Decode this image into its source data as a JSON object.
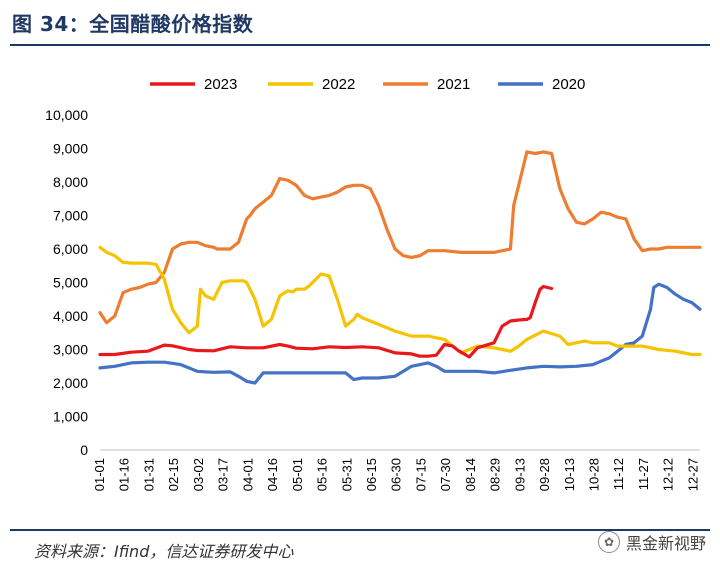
{
  "header": {
    "title": "图 34：全国醋酸价格指数"
  },
  "footer": {
    "source": "资料来源：Ifind，信达证券研发中心",
    "watermark": "黑金新视野"
  },
  "chart_data": {
    "type": "line",
    "title": "",
    "xlabel": "",
    "ylabel": "",
    "ylim": [
      0,
      10000
    ],
    "y_ticks": [
      "0",
      "1,000",
      "2,000",
      "3,000",
      "4,000",
      "5,000",
      "6,000",
      "7,000",
      "8,000",
      "9,000",
      "10,000"
    ],
    "x_ticks": [
      "01-01",
      "01-16",
      "01-31",
      "02-15",
      "03-02",
      "03-17",
      "04-01",
      "04-16",
      "05-01",
      "05-16",
      "05-31",
      "06-15",
      "06-30",
      "07-15",
      "07-30",
      "08-14",
      "08-29",
      "09-13",
      "09-28",
      "10-13",
      "10-28",
      "11-12",
      "11-27",
      "12-12",
      "12-27"
    ],
    "legend_position": "top",
    "grid": false,
    "x_unit": "day-of-year",
    "series": [
      {
        "name": "2023",
        "color": "#e8191c",
        "x": [
          1,
          10,
          20,
          30,
          40,
          45,
          55,
          60,
          70,
          80,
          90,
          100,
          110,
          115,
          120,
          130,
          140,
          150,
          160,
          170,
          180,
          190,
          195,
          200,
          205,
          210,
          215,
          218,
          225,
          230,
          240,
          245,
          250,
          255,
          260,
          262,
          265,
          268,
          270,
          275
        ],
        "values": [
          2850,
          2850,
          2920,
          2950,
          3130,
          3110,
          3000,
          2970,
          2960,
          3080,
          3050,
          3050,
          3150,
          3100,
          3040,
          3020,
          3080,
          3060,
          3080,
          3050,
          2900,
          2870,
          2800,
          2800,
          2830,
          3150,
          3100,
          2980,
          2780,
          3050,
          3200,
          3700,
          3850,
          3880,
          3900,
          3950,
          4400,
          4800,
          4880,
          4820
        ]
      },
      {
        "name": "2022",
        "color": "#f5c400",
        "x": [
          1,
          5,
          10,
          15,
          20,
          30,
          35,
          40,
          45,
          50,
          55,
          60,
          62,
          65,
          70,
          72,
          75,
          80,
          85,
          88,
          90,
          95,
          100,
          105,
          110,
          115,
          118,
          120,
          125,
          128,
          130,
          135,
          140,
          145,
          150,
          155,
          157,
          160,
          165,
          170,
          175,
          180,
          190,
          200,
          210,
          220,
          230,
          240,
          245,
          250,
          255,
          260,
          270,
          280,
          285,
          290,
          295,
          300,
          310,
          315,
          320,
          330,
          340,
          350,
          360,
          365
        ],
        "values": [
          6050,
          5900,
          5800,
          5600,
          5580,
          5580,
          5540,
          5100,
          4200,
          3800,
          3500,
          3700,
          4800,
          4600,
          4500,
          4700,
          5000,
          5050,
          5050,
          5050,
          5000,
          4500,
          3700,
          3900,
          4600,
          4750,
          4720,
          4800,
          4800,
          4900,
          5000,
          5250,
          5200,
          4500,
          3700,
          3900,
          4050,
          3950,
          3850,
          3750,
          3650,
          3550,
          3400,
          3400,
          3300,
          2900,
          3100,
          3050,
          3000,
          2950,
          3100,
          3300,
          3550,
          3400,
          3150,
          3200,
          3250,
          3200,
          3200,
          3100,
          3100,
          3100,
          3000,
          2950,
          2850,
          2850
        ]
      },
      {
        "name": "2021",
        "color": "#ed7d31",
        "x": [
          1,
          5,
          10,
          15,
          20,
          25,
          30,
          35,
          40,
          45,
          50,
          55,
          60,
          65,
          70,
          72,
          75,
          80,
          85,
          90,
          92,
          95,
          100,
          105,
          110,
          115,
          120,
          125,
          130,
          135,
          140,
          145,
          150,
          155,
          160,
          165,
          170,
          175,
          180,
          185,
          190,
          195,
          200,
          210,
          220,
          230,
          240,
          245,
          250,
          252,
          255,
          260,
          265,
          270,
          275,
          280,
          285,
          290,
          295,
          300,
          305,
          310,
          315,
          320,
          325,
          330,
          335,
          340,
          345,
          350,
          355,
          360,
          365
        ],
        "values": [
          4100,
          3800,
          4000,
          4700,
          4800,
          4850,
          4950,
          5000,
          5300,
          6000,
          6150,
          6200,
          6200,
          6100,
          6050,
          6000,
          6000,
          6000,
          6200,
          6900,
          7000,
          7200,
          7400,
          7600,
          8100,
          8050,
          7900,
          7600,
          7500,
          7550,
          7600,
          7700,
          7850,
          7900,
          7900,
          7800,
          7300,
          6600,
          6000,
          5800,
          5750,
          5800,
          5950,
          5950,
          5900,
          5900,
          5900,
          5950,
          6000,
          7300,
          7900,
          8900,
          8850,
          8900,
          8850,
          7800,
          7200,
          6800,
          6750,
          6900,
          7100,
          7050,
          6950,
          6900,
          6300,
          5950,
          6000,
          6000,
          6050,
          6050,
          6050,
          6050,
          6050
        ]
      },
      {
        "name": "2020",
        "color": "#4472c4",
        "x": [
          1,
          10,
          20,
          30,
          40,
          50,
          60,
          65,
          70,
          80,
          85,
          90,
          95,
          100,
          105,
          110,
          120,
          130,
          140,
          150,
          155,
          160,
          170,
          180,
          185,
          190,
          200,
          205,
          210,
          215,
          220,
          230,
          240,
          250,
          260,
          270,
          280,
          290,
          300,
          305,
          310,
          315,
          320,
          325,
          330,
          335,
          337,
          340,
          345,
          350,
          355,
          360,
          365
        ],
        "values": [
          2450,
          2500,
          2600,
          2620,
          2620,
          2550,
          2350,
          2330,
          2320,
          2330,
          2200,
          2050,
          2000,
          2300,
          2300,
          2300,
          2300,
          2300,
          2300,
          2300,
          2100,
          2150,
          2150,
          2200,
          2350,
          2500,
          2600,
          2500,
          2350,
          2350,
          2350,
          2350,
          2300,
          2380,
          2450,
          2500,
          2480,
          2500,
          2550,
          2650,
          2750,
          2950,
          3150,
          3200,
          3400,
          4200,
          4850,
          4950,
          4850,
          4650,
          4500,
          4400,
          4200
        ]
      }
    ]
  }
}
